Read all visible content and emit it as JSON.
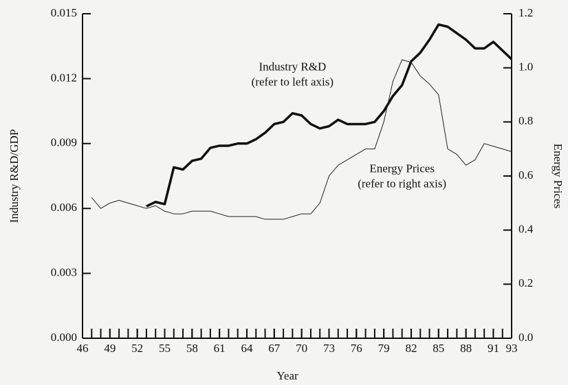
{
  "chart_data": {
    "type": "line",
    "xlabel": "Year",
    "ylabel": "Industry R&D/GDP",
    "y2label": "Energy Prices",
    "annotations": [
      {
        "text": "Industry R&D",
        "x": 69,
        "y": 0.0125
      },
      {
        "text": "(refer to left axis)",
        "x": 69,
        "y": 0.0118
      },
      {
        "text": "Energy Prices",
        "x": 81,
        "y": 0.0078
      },
      {
        "text": "(refer to right axis)",
        "x": 81,
        "y": 0.0071
      }
    ],
    "x": [
      46,
      47,
      48,
      49,
      50,
      51,
      52,
      53,
      54,
      55,
      56,
      57,
      58,
      59,
      60,
      61,
      62,
      63,
      64,
      65,
      66,
      67,
      68,
      69,
      70,
      71,
      72,
      73,
      74,
      75,
      76,
      77,
      78,
      79,
      80,
      81,
      82,
      83,
      84,
      85,
      86,
      87,
      88,
      89,
      90,
      91,
      92,
      93
    ],
    "series": [
      {
        "name": "Industry R&D",
        "color": "#111111",
        "width": 3.5,
        "values": [
          null,
          null,
          null,
          null,
          null,
          null,
          null,
          0.0061,
          0.0063,
          0.0062,
          0.0079,
          0.0078,
          0.0082,
          0.0083,
          0.0088,
          0.0089,
          0.0089,
          0.009,
          0.009,
          0.0092,
          0.0095,
          0.0099,
          0.01,
          0.0104,
          0.0103,
          0.0099,
          0.0097,
          0.0098,
          0.0101,
          0.0099,
          0.0099,
          0.0099,
          0.01,
          0.0105,
          0.0112,
          0.0117,
          0.0128,
          0.0132,
          0.0138,
          0.0145,
          0.0144,
          0.0141,
          0.0138,
          0.0134,
          0.0134,
          0.0137,
          0.0133,
          0.0129
        ]
      },
      {
        "name": "Energy Prices",
        "color": "#222222",
        "width": 1,
        "axis": "y2",
        "values": [
          null,
          0.52,
          0.48,
          0.5,
          0.51,
          0.5,
          0.49,
          0.48,
          0.49,
          0.47,
          0.46,
          0.46,
          0.47,
          0.47,
          0.47,
          0.46,
          0.45,
          0.45,
          0.45,
          0.45,
          0.44,
          0.44,
          0.44,
          0.45,
          0.46,
          0.46,
          0.5,
          0.6,
          0.64,
          0.66,
          0.68,
          0.7,
          0.7,
          0.8,
          0.95,
          1.03,
          1.02,
          0.97,
          0.94,
          0.9,
          0.7,
          0.68,
          0.64,
          0.66,
          0.72,
          0.71,
          0.7,
          0.69
        ]
      }
    ],
    "xlim": [
      46,
      93
    ],
    "xticks": [
      46,
      49,
      52,
      55,
      58,
      61,
      64,
      67,
      70,
      73,
      76,
      79,
      82,
      85,
      88,
      91,
      93
    ],
    "minor_xticks": [
      46,
      47,
      48,
      49,
      50,
      51,
      52,
      53,
      54,
      55,
      56,
      57,
      58,
      59,
      60,
      61,
      62,
      63,
      64,
      65,
      66,
      67,
      68,
      69,
      70,
      71,
      72,
      73,
      74,
      75,
      76,
      77,
      78,
      79,
      80,
      81,
      82,
      83,
      84,
      85,
      86,
      87,
      88,
      89,
      90,
      91,
      92,
      93
    ],
    "ylim": [
      0,
      0.015
    ],
    "yticks": [
      {
        "value": 0,
        "label": "0.000"
      },
      0.003,
      0.006,
      0.009,
      0.012,
      0.015
    ],
    "y2lim": [
      0,
      1.2
    ],
    "y2ticks": [
      {
        "value": 0,
        "label": "0.0"
      },
      0.2,
      0.4,
      0.6,
      0.8,
      {
        "value": 1,
        "label": "1.0"
      },
      1.2
    ]
  }
}
